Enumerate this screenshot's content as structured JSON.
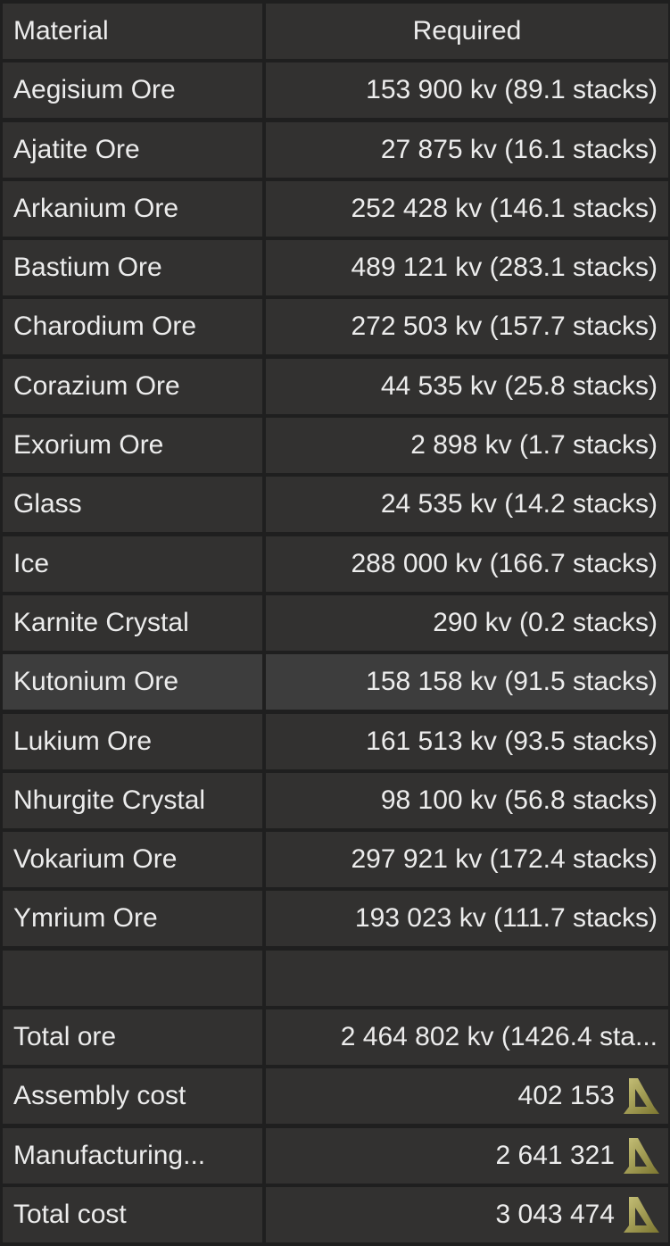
{
  "header": {
    "material": "Material",
    "required": "Required"
  },
  "rows": [
    {
      "name": "Aegisium Ore",
      "required": "153 900 kv (89.1 stacks)"
    },
    {
      "name": "Ajatite Ore",
      "required": "27 875 kv (16.1 stacks)"
    },
    {
      "name": "Arkanium Ore",
      "required": "252 428 kv (146.1 stacks)"
    },
    {
      "name": "Bastium Ore",
      "required": "489 121 kv (283.1 stacks)"
    },
    {
      "name": "Charodium Ore",
      "required": "272 503 kv (157.7 stacks)"
    },
    {
      "name": "Corazium Ore",
      "required": "44 535 kv (25.8 stacks)"
    },
    {
      "name": "Exorium Ore",
      "required": "2 898 kv (1.7 stacks)"
    },
    {
      "name": "Glass",
      "required": "24 535 kv (14.2 stacks)"
    },
    {
      "name": "Ice",
      "required": "288 000 kv (166.7 stacks)"
    },
    {
      "name": "Karnite Crystal",
      "required": "290 kv (0.2 stacks)"
    },
    {
      "name": "Kutonium Ore",
      "required": "158 158 kv (91.5 stacks)"
    },
    {
      "name": "Lukium Ore",
      "required": "161 513 kv (93.5 stacks)"
    },
    {
      "name": "Nhurgite Crystal",
      "required": "98 100 kv (56.8 stacks)"
    },
    {
      "name": "Vokarium Ore",
      "required": "297 921 kv (172.4 stacks)"
    },
    {
      "name": "Ymrium Ore",
      "required": "193 023 kv (111.7 stacks)"
    }
  ],
  "highlighted_row": "Kutonium Ore",
  "totals": {
    "total_ore": {
      "label": "Total ore",
      "value": "2 464 802 kv (1426.4 sta..."
    },
    "assembly_cost": {
      "label": "Assembly cost",
      "value": "402 153",
      "icon": "currency-icon"
    },
    "manufacturing": {
      "label": "Manufacturing...",
      "value": "2 641 321",
      "icon": "currency-icon"
    },
    "total_cost": {
      "label": "Total cost",
      "value": "3 043 474",
      "icon": "currency-icon"
    }
  },
  "colors": {
    "cell": "#323130",
    "highlight": "#3d3d3d",
    "background": "#1f1f1f",
    "currency": "#a8a24a"
  }
}
